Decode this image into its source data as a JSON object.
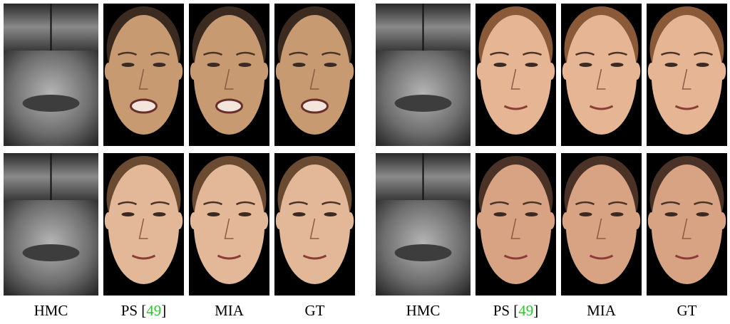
{
  "figure": {
    "groups": [
      {
        "columns": [
          {
            "parts": [
              "HMC"
            ]
          },
          {
            "parts": [
              "PS [",
              "49",
              "]"
            ]
          },
          {
            "parts": [
              "MIA"
            ]
          },
          {
            "parts": [
              "GT"
            ]
          }
        ]
      },
      {
        "columns": [
          {
            "parts": [
              "HMC"
            ]
          },
          {
            "parts": [
              "PS [",
              "49",
              "]"
            ]
          },
          {
            "parts": [
              "MIA"
            ]
          },
          {
            "parts": [
              "GT"
            ]
          }
        ]
      }
    ]
  }
}
